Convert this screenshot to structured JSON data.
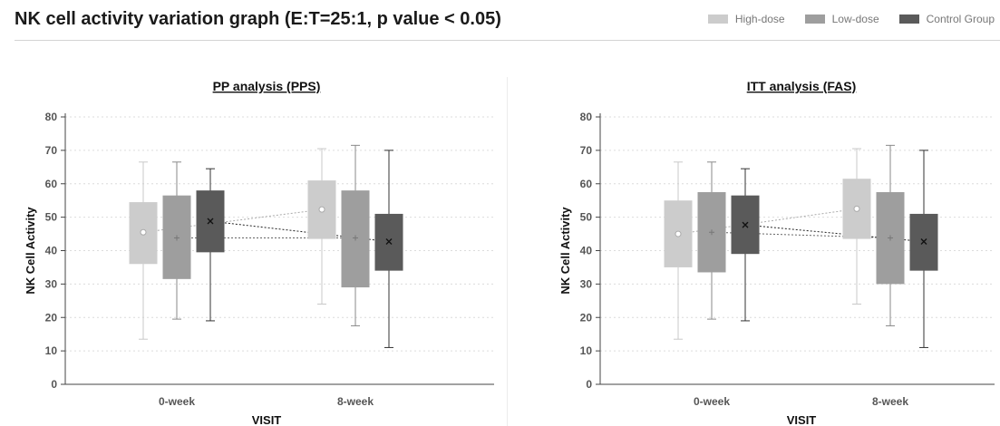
{
  "title": "NK cell activity variation graph (E:T=25:1, p value < 0.05)",
  "legend": [
    {
      "label": "High-dose",
      "color": "#cccccc"
    },
    {
      "label": "Low-dose",
      "color": "#9e9e9e"
    },
    {
      "label": "Control Group",
      "color": "#5a5a5a"
    }
  ],
  "chart_data": [
    {
      "type": "box",
      "title": "PP analysis (PPS)",
      "xlabel": "VISIT",
      "ylabel": "NK Cell Activity",
      "ylim": [
        0,
        80
      ],
      "yticks": [
        0,
        10,
        20,
        30,
        40,
        50,
        60,
        70,
        80
      ],
      "categories": [
        "0-week",
        "8-week"
      ],
      "grid": true,
      "series": [
        {
          "name": "High-dose",
          "color": "#cccccc",
          "mean_marker": "circle",
          "boxes": [
            {
              "min": 13.5,
              "q1": 36,
              "median": 36,
              "q3": 54.5,
              "max": 66.5,
              "mean": 45.5
            },
            {
              "min": 24,
              "q1": 43.5,
              "median": 43.5,
              "q3": 61,
              "max": 70.5,
              "mean": 52.3
            }
          ]
        },
        {
          "name": "Low-dose",
          "color": "#9e9e9e",
          "mean_marker": "plus",
          "boxes": [
            {
              "min": 19.5,
              "q1": 31.5,
              "median": 31.5,
              "q3": 56.5,
              "max": 66.5,
              "mean": 43.8
            },
            {
              "min": 17.5,
              "q1": 29,
              "median": 29,
              "q3": 58,
              "max": 71.5,
              "mean": 43.8
            }
          ]
        },
        {
          "name": "Control Group",
          "color": "#5a5a5a",
          "mean_marker": "x",
          "boxes": [
            {
              "min": 19,
              "q1": 39.5,
              "median": 39.5,
              "q3": 58,
              "max": 64.5,
              "mean": 48.8
            },
            {
              "min": 11,
              "q1": 34,
              "median": 34,
              "q3": 51,
              "max": 70,
              "mean": 42.7
            }
          ]
        }
      ]
    },
    {
      "type": "box",
      "title": "ITT analysis (FAS)",
      "xlabel": "VISIT",
      "ylabel": "NK Cell Activity",
      "ylim": [
        0,
        80
      ],
      "yticks": [
        0,
        10,
        20,
        30,
        40,
        50,
        60,
        70,
        80
      ],
      "categories": [
        "0-week",
        "8-week"
      ],
      "grid": true,
      "series": [
        {
          "name": "High-dose",
          "color": "#cccccc",
          "mean_marker": "circle",
          "boxes": [
            {
              "min": 13.5,
              "q1": 35,
              "median": 35,
              "q3": 55,
              "max": 66.5,
              "mean": 45
            },
            {
              "min": 24,
              "q1": 43.5,
              "median": 43.5,
              "q3": 61.5,
              "max": 70.5,
              "mean": 52.5
            }
          ]
        },
        {
          "name": "Low-dose",
          "color": "#9e9e9e",
          "mean_marker": "plus",
          "boxes": [
            {
              "min": 19.5,
              "q1": 33.5,
              "median": 33.5,
              "q3": 57.5,
              "max": 66.5,
              "mean": 45.5
            },
            {
              "min": 17.5,
              "q1": 30,
              "median": 30,
              "q3": 57.5,
              "max": 71.5,
              "mean": 43.8
            }
          ]
        },
        {
          "name": "Control Group",
          "color": "#5a5a5a",
          "mean_marker": "x",
          "boxes": [
            {
              "min": 19,
              "q1": 39,
              "median": 39,
              "q3": 56.5,
              "max": 64.5,
              "mean": 47.7
            },
            {
              "min": 11,
              "q1": 34,
              "median": 34,
              "q3": 51,
              "max": 70,
              "mean": 42.7
            }
          ]
        }
      ]
    }
  ]
}
